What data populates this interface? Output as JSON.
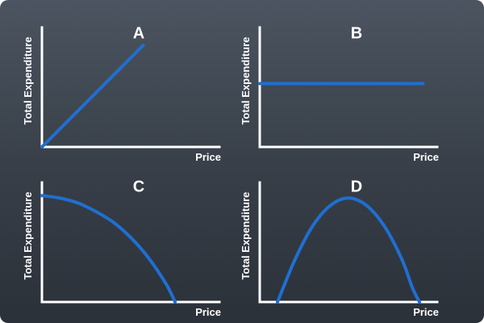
{
  "colors": {
    "background_top": "#4b5460",
    "background_bottom": "#2b3139",
    "axis": "#ffffff",
    "curve": "#1f6fd1"
  },
  "chart_data": [
    {
      "type": "line",
      "title": "A",
      "xlabel": "Price",
      "ylabel": "Total Expenditure",
      "xlim": [
        0,
        10
      ],
      "ylim": [
        0,
        10
      ],
      "series": [
        {
          "values": [
            [
              0,
              0
            ],
            [
              5.7,
              8.5
            ]
          ]
        }
      ]
    },
    {
      "type": "line",
      "title": "B",
      "xlabel": "Price",
      "ylabel": "Total Expenditure",
      "xlim": [
        0,
        10
      ],
      "ylim": [
        0,
        10
      ],
      "series": [
        {
          "values": [
            [
              0,
              5.3
            ],
            [
              9.2,
              5.3
            ]
          ]
        }
      ]
    },
    {
      "type": "line",
      "title": "C",
      "xlabel": "Price",
      "ylabel": "Total Expenditure",
      "xlim": [
        0,
        10
      ],
      "ylim": [
        0,
        10
      ],
      "series": [
        {
          "values": [
            [
              0,
              8.9
            ],
            [
              1,
              8.7
            ],
            [
              2,
              8.3
            ],
            [
              3,
              7.6
            ],
            [
              4,
              6.7
            ],
            [
              5,
              5.4
            ],
            [
              6,
              3.7
            ],
            [
              7,
              1.5
            ],
            [
              7.5,
              0
            ]
          ]
        }
      ]
    },
    {
      "type": "line",
      "title": "D",
      "xlabel": "Price",
      "ylabel": "Total Expenditure",
      "xlim": [
        0,
        10
      ],
      "ylim": [
        0,
        10
      ],
      "series": [
        {
          "values": [
            [
              1,
              0
            ],
            [
              2,
              3.6
            ],
            [
              3,
              6.4
            ],
            [
              4,
              8.1
            ],
            [
              5,
              8.7
            ],
            [
              6,
              8.1
            ],
            [
              7,
              6.4
            ],
            [
              8,
              3.6
            ],
            [
              8.6,
              1.2
            ],
            [
              9,
              0
            ]
          ]
        }
      ]
    }
  ]
}
